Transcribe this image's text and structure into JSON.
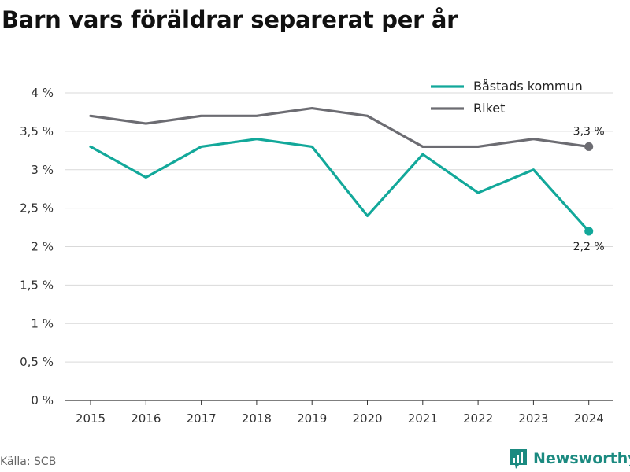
{
  "title": "Barn vars föräldrar separerat per år",
  "source": "Källa: SCB",
  "brand": "Newsworthy",
  "colors": {
    "primary": "#12a89a",
    "secondary": "#6c6c72",
    "brand": "#1b8a80"
  },
  "chart_data": {
    "type": "line",
    "title": "Barn vars föräldrar separerat per år",
    "xlabel": "",
    "ylabel": "",
    "categories": [
      "2015",
      "2016",
      "2017",
      "2018",
      "2019",
      "2020",
      "2021",
      "2022",
      "2023",
      "2024"
    ],
    "yticks": [
      "0 %",
      "0,5 %",
      "1 %",
      "1,5 %",
      "2 %",
      "2,5 %",
      "3 %",
      "3,5 %",
      "4 %"
    ],
    "ylim": [
      0,
      4
    ],
    "grid": true,
    "legend_position": "top-right",
    "series": [
      {
        "name": "Båstads kommun",
        "color": "#12a89a",
        "values": [
          3.3,
          2.9,
          3.3,
          3.4,
          3.3,
          2.4,
          3.2,
          2.7,
          3.0,
          2.2
        ],
        "end_label": "2,2 %"
      },
      {
        "name": "Riket",
        "color": "#6c6c72",
        "values": [
          3.7,
          3.6,
          3.7,
          3.7,
          3.8,
          3.7,
          3.3,
          3.3,
          3.4,
          3.3
        ],
        "end_label": "3,3 %"
      }
    ]
  }
}
